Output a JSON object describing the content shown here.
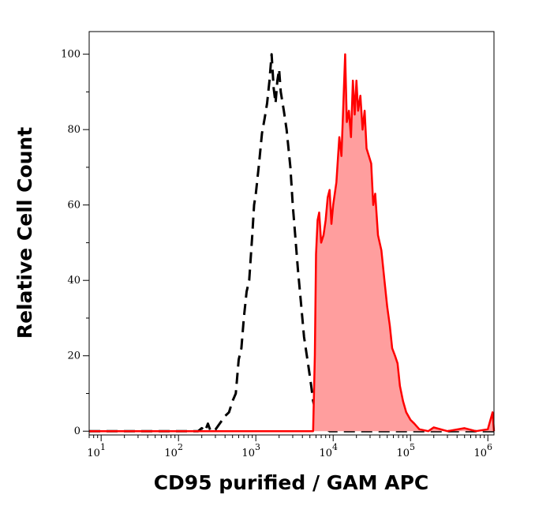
{
  "chart_data": {
    "type": "area",
    "xlabel": "CD95 purified / GAM APC",
    "ylabel": "Relative Cell Count",
    "x_scale": "log",
    "xlim": [
      7,
      1200000
    ],
    "ylim": [
      -1,
      106
    ],
    "x_ticks": [
      {
        "value": 10,
        "base": "10",
        "exp": "1"
      },
      {
        "value": 100,
        "base": "10",
        "exp": "2"
      },
      {
        "value": 1000,
        "base": "10",
        "exp": "3"
      },
      {
        "value": 10000,
        "base": "10",
        "exp": "4"
      },
      {
        "value": 100000,
        "base": "10",
        "exp": "5"
      },
      {
        "value": 1000000,
        "base": "10",
        "exp": "6"
      }
    ],
    "y_ticks": [
      0,
      20,
      40,
      60,
      80,
      100
    ],
    "y_tick_labels": [
      "0",
      "20",
      "40",
      "60",
      "80",
      "100"
    ],
    "series": [
      {
        "style": "dashed",
        "color": "#000000",
        "fill": "none",
        "points": [
          [
            7,
            0
          ],
          [
            100,
            0
          ],
          [
            180,
            0
          ],
          [
            200,
            0.8
          ],
          [
            220,
            0
          ],
          [
            240,
            2
          ],
          [
            260,
            0
          ],
          [
            300,
            0.4
          ],
          [
            400,
            4
          ],
          [
            450,
            5
          ],
          [
            500,
            8
          ],
          [
            550,
            10
          ],
          [
            600,
            19
          ],
          [
            650,
            22
          ],
          [
            700,
            30
          ],
          [
            760,
            37
          ],
          [
            820,
            40
          ],
          [
            900,
            52
          ],
          [
            950,
            60
          ],
          [
            1000,
            63
          ],
          [
            1100,
            71
          ],
          [
            1200,
            79
          ],
          [
            1300,
            83
          ],
          [
            1400,
            87
          ],
          [
            1500,
            93
          ],
          [
            1600,
            100
          ],
          [
            1700,
            91
          ],
          [
            1800,
            87
          ],
          [
            1900,
            93
          ],
          [
            2000,
            96
          ],
          [
            2100,
            90
          ],
          [
            2300,
            85
          ],
          [
            2500,
            80
          ],
          [
            2800,
            70
          ],
          [
            3000,
            60
          ],
          [
            3200,
            53
          ],
          [
            3500,
            43
          ],
          [
            3800,
            35
          ],
          [
            4200,
            25
          ],
          [
            4800,
            17
          ],
          [
            5200,
            12
          ],
          [
            5500,
            8
          ],
          [
            6000,
            5
          ],
          [
            7000,
            1.5
          ],
          [
            9000,
            0
          ],
          [
            20000,
            0
          ],
          [
            100000,
            0
          ],
          [
            1200000,
            0
          ]
        ]
      },
      {
        "style": "solid",
        "color": "#ff0000",
        "fill": "#ff9e9e",
        "points": [
          [
            7,
            0
          ],
          [
            5500,
            0
          ],
          [
            5800,
            20
          ],
          [
            6000,
            47
          ],
          [
            6300,
            56
          ],
          [
            6600,
            58
          ],
          [
            7000,
            50
          ],
          [
            7500,
            52
          ],
          [
            8000,
            56
          ],
          [
            8500,
            62
          ],
          [
            9000,
            64
          ],
          [
            9500,
            55
          ],
          [
            10000,
            60
          ],
          [
            11000,
            66
          ],
          [
            12000,
            78
          ],
          [
            12800,
            73
          ],
          [
            13500,
            86
          ],
          [
            14300,
            100
          ],
          [
            15000,
            82
          ],
          [
            16000,
            85
          ],
          [
            17000,
            78
          ],
          [
            18000,
            93
          ],
          [
            19000,
            84
          ],
          [
            20000,
            93
          ],
          [
            21000,
            85
          ],
          [
            22500,
            89
          ],
          [
            24000,
            80
          ],
          [
            25500,
            85
          ],
          [
            27000,
            75
          ],
          [
            29000,
            73
          ],
          [
            31000,
            71
          ],
          [
            33000,
            60
          ],
          [
            35000,
            63
          ],
          [
            38000,
            52
          ],
          [
            42000,
            48
          ],
          [
            46000,
            40
          ],
          [
            50000,
            33
          ],
          [
            54000,
            28
          ],
          [
            58000,
            22
          ],
          [
            63000,
            20
          ],
          [
            68000,
            18
          ],
          [
            73000,
            12
          ],
          [
            80000,
            8
          ],
          [
            88000,
            5
          ],
          [
            100000,
            3
          ],
          [
            112000,
            2
          ],
          [
            130000,
            0.5
          ],
          [
            170000,
            0
          ],
          [
            200000,
            1
          ],
          [
            300000,
            0
          ],
          [
            500000,
            0.8
          ],
          [
            700000,
            0
          ],
          [
            1000000,
            0.5
          ],
          [
            1150000,
            5
          ],
          [
            1200000,
            0
          ]
        ]
      }
    ]
  }
}
